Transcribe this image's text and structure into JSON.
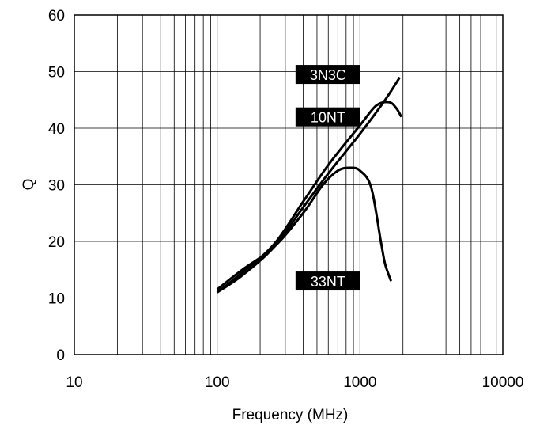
{
  "chart_data": {
    "type": "line",
    "title": "",
    "xlabel": "Frequency (MHz)",
    "ylabel": "Q",
    "xscale": "log",
    "xlim": [
      10,
      10000
    ],
    "ylim": [
      0,
      60
    ],
    "grid": true,
    "x_ticks": [
      "10",
      "100",
      "1000",
      "10000"
    ],
    "y_ticks": [
      "0",
      "10",
      "20",
      "30",
      "40",
      "50",
      "60"
    ],
    "series": [
      {
        "name": "3N3C",
        "x": [
          100,
          150,
          250,
          400,
          600,
          1000,
          1500,
          1900
        ],
        "y": [
          11,
          14,
          19,
          26,
          32,
          39,
          45,
          49
        ]
      },
      {
        "name": "10NT",
        "x": [
          100,
          150,
          250,
          400,
          600,
          1000,
          1300,
          1600,
          1800,
          1950
        ],
        "y": [
          11,
          14.5,
          19.5,
          27,
          33.5,
          40.5,
          44,
          44.6,
          43.5,
          42
        ]
      },
      {
        "name": "33NT",
        "x": [
          100,
          150,
          250,
          400,
          550,
          700,
          850,
          1000,
          1200,
          1400,
          1500,
          1650
        ],
        "y": [
          11.5,
          15,
          19,
          25,
          30,
          32.5,
          33,
          32.5,
          29.5,
          20,
          16,
          13
        ]
      }
    ]
  }
}
